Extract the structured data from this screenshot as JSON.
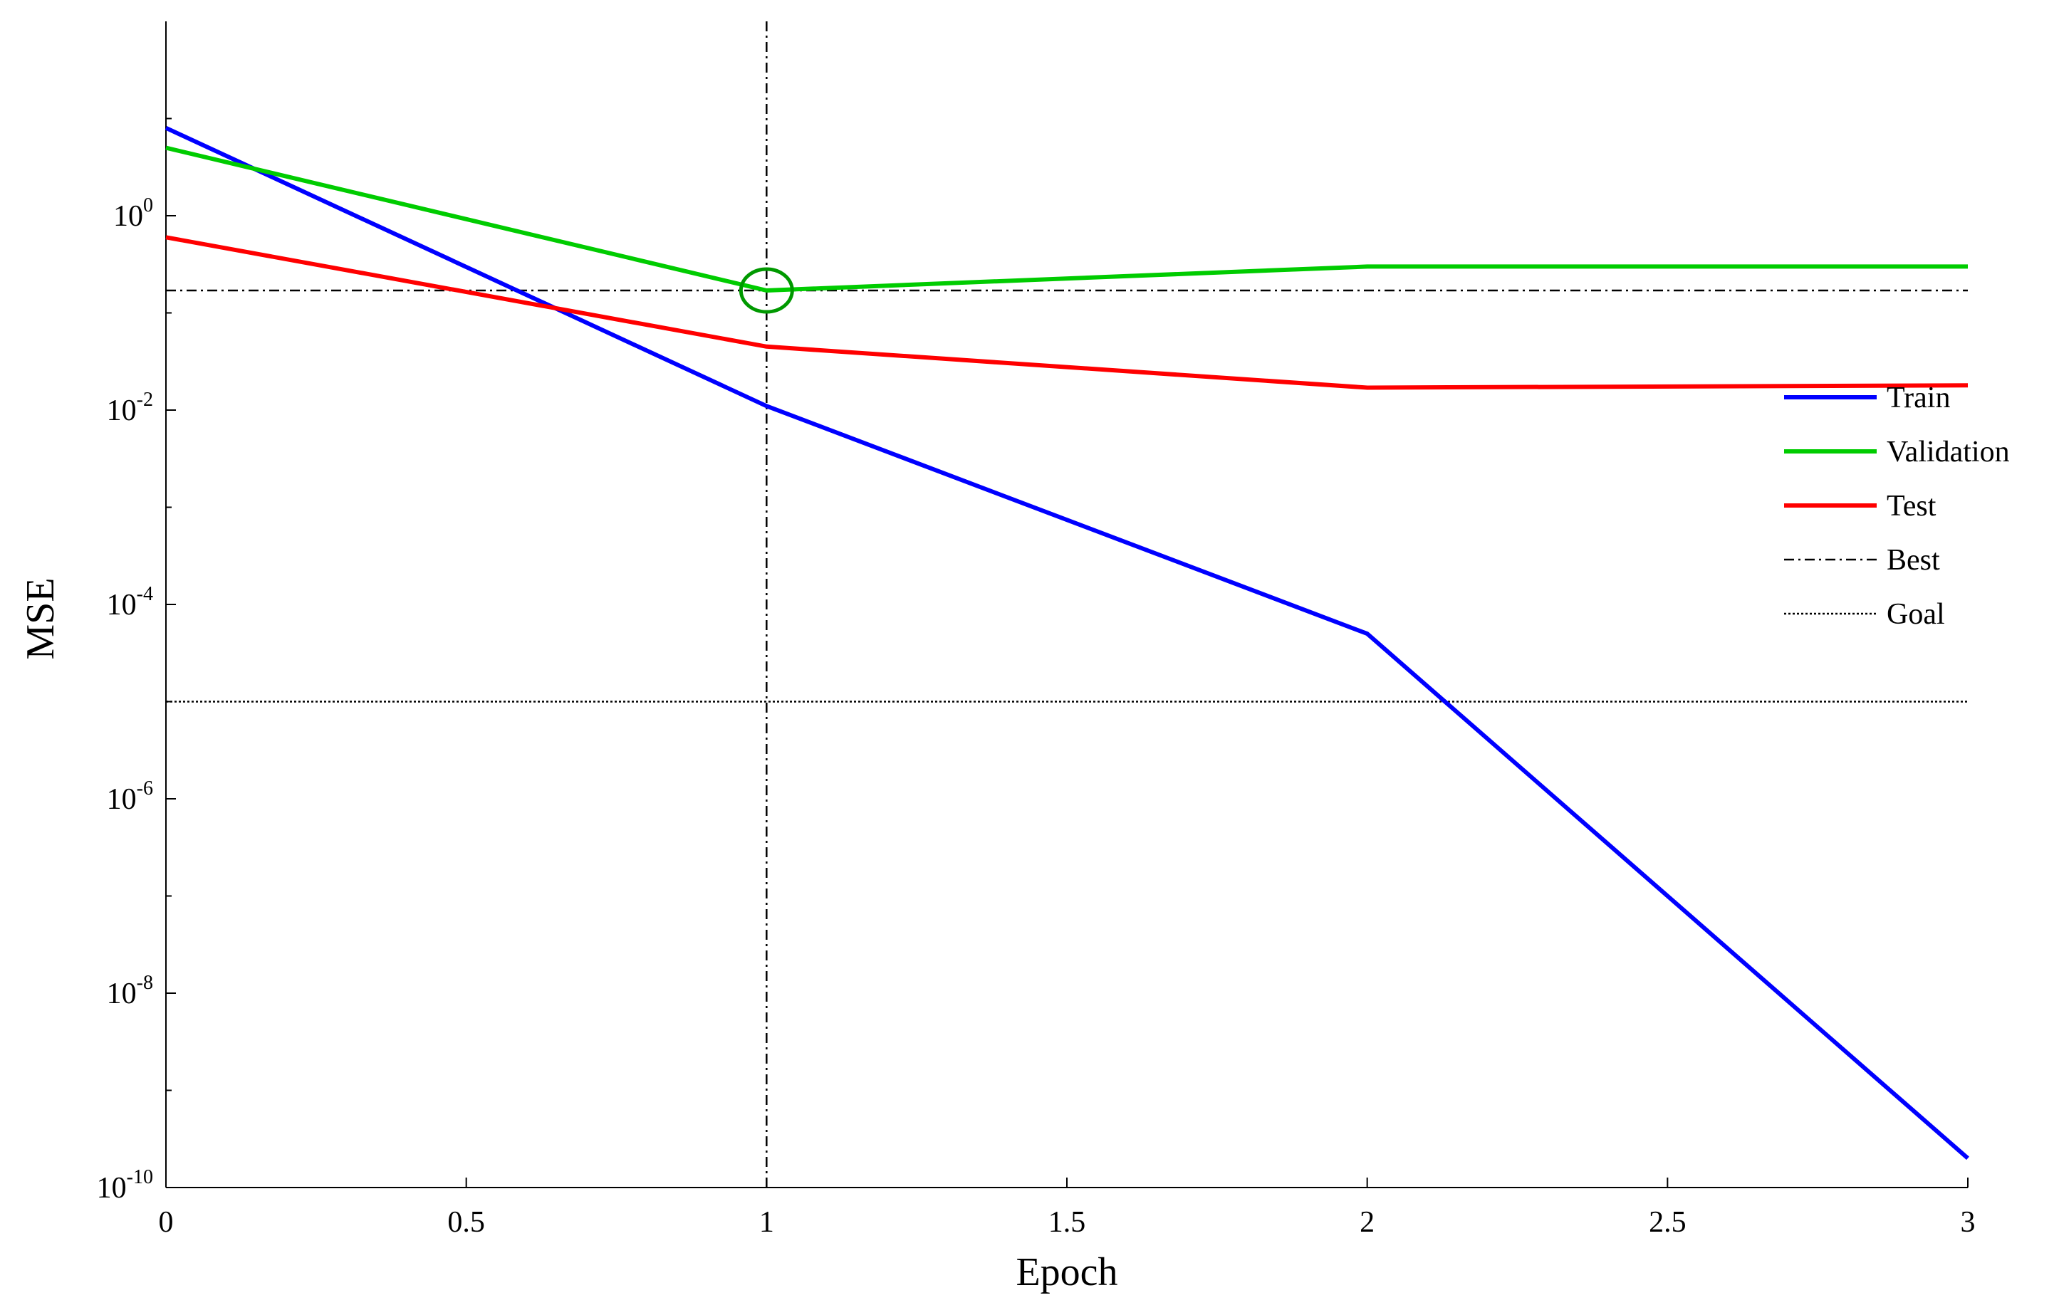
{
  "chart_data": {
    "type": "line",
    "title": "",
    "xlabel": "Epoch",
    "ylabel": "MSE",
    "xlim": [
      0,
      3
    ],
    "ylim": [
      1e-10,
      100
    ],
    "yscale": "log",
    "grid": false,
    "legend_position": "right",
    "x_ticks": [
      "0",
      "0.5",
      "1",
      "1.5",
      "2",
      "2.5",
      "3"
    ],
    "y_ticks": [
      {
        "base": "10",
        "exp": "0"
      },
      {
        "base": "10",
        "exp": "-2"
      },
      {
        "base": "10",
        "exp": "-4"
      },
      {
        "base": "10",
        "exp": "-6"
      },
      {
        "base": "10",
        "exp": "-8"
      },
      {
        "base": "10",
        "exp": "-10"
      }
    ],
    "series": [
      {
        "name": "Train",
        "color": "#0000ff",
        "style": "solid",
        "x": [
          0,
          1,
          2,
          3
        ],
        "y": [
          8,
          0.011,
          5e-05,
          2e-10
        ]
      },
      {
        "name": "Validation",
        "color": "#00cc00",
        "style": "solid",
        "x": [
          0,
          1,
          2,
          3
        ],
        "y": [
          5,
          0.17,
          0.3,
          0.3
        ]
      },
      {
        "name": "Test",
        "color": "#ff0000",
        "style": "solid",
        "x": [
          0,
          1,
          2,
          3
        ],
        "y": [
          0.6,
          0.045,
          0.017,
          0.018
        ]
      },
      {
        "name": "Best",
        "color": "#000000",
        "style": "dash-dot",
        "x": [
          0,
          3
        ],
        "y": [
          0.17,
          0.17
        ],
        "vertical_x": 1
      },
      {
        "name": "Goal",
        "color": "#000000",
        "style": "dotted",
        "x": [
          0,
          3
        ],
        "y": [
          1e-05,
          1e-05
        ]
      }
    ],
    "best_marker": {
      "x": 1,
      "y": 0.17,
      "color": "#009900"
    }
  }
}
